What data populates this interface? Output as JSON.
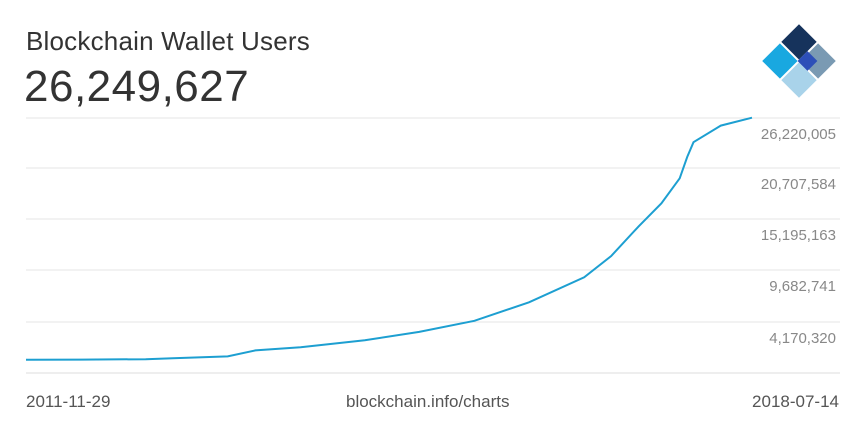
{
  "header": {
    "title": "Blockchain Wallet Users",
    "current_value": "26,249,627"
  },
  "logo": {
    "icon": "blockchain-logo-icon"
  },
  "footer": {
    "start_date": "2011-11-29",
    "source": "blockchain.info/charts",
    "end_date": "2018-07-14"
  },
  "colors": {
    "line": "#1d9fd1",
    "grid": "#e6e6e6"
  },
  "chart_data": {
    "type": "line",
    "title": "Blockchain Wallet Users",
    "x_range": [
      "2011-11-29",
      "2018-07-14"
    ],
    "y_ticks": [
      4170320,
      9682741,
      15195163,
      20707584,
      26220005
    ],
    "y_tick_labels": [
      "4,170,320",
      "9,682,741",
      "15,195,163",
      "20,707,584",
      "26,220,005"
    ],
    "grid": true,
    "series": [
      {
        "values": [
          [
            "2011-11-29",
            100000
          ],
          [
            "2012-06-01",
            110000
          ],
          [
            "2013-01-01",
            150000
          ],
          [
            "2013-04-01",
            250000
          ],
          [
            "2013-10-01",
            450000
          ],
          [
            "2014-01-01",
            1100000
          ],
          [
            "2014-06-01",
            1450000
          ],
          [
            "2015-01-01",
            2200000
          ],
          [
            "2015-07-01",
            3100000
          ],
          [
            "2016-01-01",
            4300000
          ],
          [
            "2016-07-01",
            6300000
          ],
          [
            "2017-01-01",
            9000000
          ],
          [
            "2017-04-01",
            11300000
          ],
          [
            "2017-07-01",
            14500000
          ],
          [
            "2017-09-15",
            17000000
          ],
          [
            "2017-11-15",
            19700000
          ],
          [
            "2017-12-10",
            22000000
          ],
          [
            "2017-12-31",
            23600000
          ],
          [
            "2018-04-01",
            25400000
          ],
          [
            "2018-07-14",
            26249627
          ]
        ]
      }
    ]
  }
}
